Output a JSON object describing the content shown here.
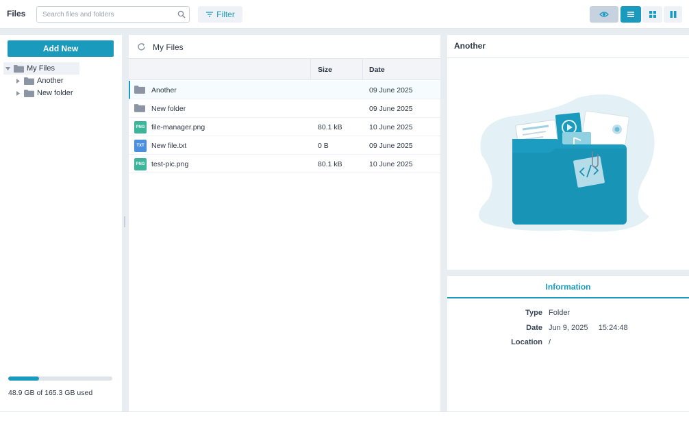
{
  "app": {
    "title": "Files"
  },
  "search": {
    "placeholder": "Search files and folders"
  },
  "toolbar": {
    "filter_label": "Filter"
  },
  "sidebar": {
    "add_label": "Add New",
    "tree": [
      {
        "label": "My Files",
        "expanded": true,
        "selected": true
      },
      {
        "label": "Another",
        "expanded": false
      },
      {
        "label": "New folder",
        "expanded": false
      }
    ],
    "storage": {
      "text": "48.9 GB of 165.3 GB used",
      "used_fraction": 0.296
    }
  },
  "list": {
    "breadcrumb": "My Files",
    "columns": {
      "size": "Size",
      "date": "Date"
    },
    "rows": [
      {
        "name": "Another",
        "type": "folder",
        "size": "",
        "date": "09 June 2025",
        "selected": true
      },
      {
        "name": "New folder",
        "type": "folder",
        "size": "",
        "date": "09 June 2025"
      },
      {
        "name": "file-manager.png",
        "type": "png",
        "badge": "PNG",
        "size": "80.1 kB",
        "date": "10 June 2025"
      },
      {
        "name": "New file.txt",
        "type": "txt",
        "badge": "TXT",
        "size": "0 B",
        "date": "09 June 2025"
      },
      {
        "name": "test-pic.png",
        "type": "png",
        "badge": "PNG",
        "size": "80.1 kB",
        "date": "10 June 2025"
      }
    ]
  },
  "preview": {
    "title": "Another"
  },
  "info": {
    "tab_label": "Information",
    "fields": [
      {
        "key": "Type",
        "value": "Folder"
      },
      {
        "key": "Date",
        "value": "Jun 9, 2025     15:24:48"
      },
      {
        "key": "Location",
        "value": "/"
      }
    ]
  },
  "colors": {
    "accent": "#1a9bbd",
    "folder": "#8c95a3",
    "png": "#3cb59a",
    "txt": "#4b8fde"
  }
}
